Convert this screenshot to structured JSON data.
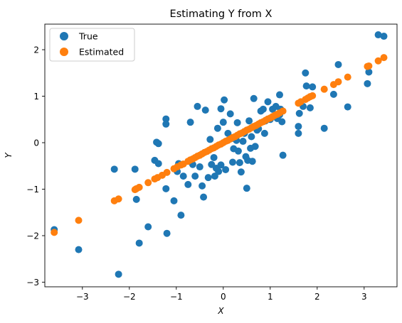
{
  "chart_data": {
    "type": "scatter",
    "title": "Estimating Y from X",
    "xlabel": "X",
    "ylabel": "Y",
    "xlim": [
      -3.8,
      3.7
    ],
    "ylim": [
      -3.1,
      2.55
    ],
    "xticks": [
      -3,
      -2,
      -1,
      0,
      1,
      2,
      3
    ],
    "yticks": [
      -3,
      -2,
      -1,
      0,
      1,
      2
    ],
    "grid": false,
    "legend_position": "top-left",
    "series": [
      {
        "name": "True",
        "color": "#1f77b4",
        "points": [
          [
            -3.6,
            -1.87
          ],
          [
            -3.08,
            -2.3
          ],
          [
            -2.32,
            -0.57
          ],
          [
            -2.23,
            -2.83
          ],
          [
            -1.88,
            -0.57
          ],
          [
            -1.85,
            -1.22
          ],
          [
            -1.79,
            -2.16
          ],
          [
            -1.6,
            -1.81
          ],
          [
            -1.46,
            -0.38
          ],
          [
            -1.42,
            0.01
          ],
          [
            -1.38,
            -0.02
          ],
          [
            -1.38,
            -0.45
          ],
          [
            -1.22,
            0.51
          ],
          [
            -1.22,
            0.4
          ],
          [
            -1.22,
            -0.99
          ],
          [
            -1.2,
            -1.95
          ],
          [
            -1.05,
            -1.25
          ],
          [
            -0.98,
            -0.62
          ],
          [
            -0.95,
            -0.45
          ],
          [
            -0.9,
            -1.56
          ],
          [
            -0.85,
            -0.72
          ],
          [
            -0.75,
            -0.9
          ],
          [
            -0.7,
            0.44
          ],
          [
            -0.65,
            -0.47
          ],
          [
            -0.6,
            -0.72
          ],
          [
            -0.55,
            0.78
          ],
          [
            -0.5,
            -0.52
          ],
          [
            -0.45,
            -0.93
          ],
          [
            -0.42,
            -1.17
          ],
          [
            -0.38,
            0.7
          ],
          [
            -0.32,
            -0.75
          ],
          [
            -0.28,
            0.07
          ],
          [
            -0.25,
            -0.47
          ],
          [
            -0.2,
            -0.32
          ],
          [
            -0.18,
            -0.72
          ],
          [
            -0.15,
            -0.55
          ],
          [
            -0.12,
            0.31
          ],
          [
            -0.1,
            -0.62
          ],
          [
            -0.05,
            0.73
          ],
          [
            -0.05,
            -0.48
          ],
          [
            0.0,
            0.44
          ],
          [
            0.02,
            0.92
          ],
          [
            0.05,
            -0.58
          ],
          [
            0.1,
            0.2
          ],
          [
            0.15,
            0.62
          ],
          [
            0.18,
            0.09
          ],
          [
            0.2,
            -0.42
          ],
          [
            0.22,
            -0.13
          ],
          [
            0.28,
            0.05
          ],
          [
            0.3,
            0.43
          ],
          [
            0.32,
            -0.18
          ],
          [
            0.35,
            -0.43
          ],
          [
            0.38,
            -0.63
          ],
          [
            0.42,
            0.03
          ],
          [
            0.45,
            0.2
          ],
          [
            0.48,
            -0.3
          ],
          [
            0.5,
            -0.98
          ],
          [
            0.52,
            -0.38
          ],
          [
            0.55,
            0.47
          ],
          [
            0.58,
            -0.12
          ],
          [
            0.6,
            0.13
          ],
          [
            0.62,
            -0.4
          ],
          [
            0.65,
            0.95
          ],
          [
            0.68,
            -0.08
          ],
          [
            0.72,
            0.27
          ],
          [
            0.75,
            0.3
          ],
          [
            0.8,
            0.68
          ],
          [
            0.85,
            0.72
          ],
          [
            0.88,
            0.2
          ],
          [
            0.9,
            0.47
          ],
          [
            0.95,
            0.88
          ],
          [
            1.0,
            0.5
          ],
          [
            1.05,
            0.72
          ],
          [
            1.12,
            0.78
          ],
          [
            1.15,
            0.52
          ],
          [
            1.2,
            0.6
          ],
          [
            1.2,
            1.03
          ],
          [
            1.22,
            0.72
          ],
          [
            1.25,
            0.45
          ],
          [
            1.27,
            -0.27
          ],
          [
            1.6,
            0.35
          ],
          [
            1.6,
            0.2
          ],
          [
            1.62,
            0.63
          ],
          [
            1.7,
            0.78
          ],
          [
            1.75,
            1.5
          ],
          [
            1.77,
            1.22
          ],
          [
            1.85,
            0.75
          ],
          [
            1.9,
            1.2
          ],
          [
            2.15,
            0.31
          ],
          [
            2.35,
            1.04
          ],
          [
            2.45,
            1.68
          ],
          [
            2.65,
            0.77
          ],
          [
            3.07,
            1.27
          ],
          [
            3.1,
            1.52
          ],
          [
            3.3,
            2.32
          ],
          [
            3.42,
            2.29
          ]
        ]
      },
      {
        "name": "Estimated",
        "color": "#ff7f0e",
        "points": [
          [
            -3.6,
            -1.93
          ],
          [
            -3.08,
            -1.67
          ],
          [
            -2.32,
            -1.25
          ],
          [
            -2.23,
            -1.21
          ],
          [
            -1.88,
            -1.01
          ],
          [
            -1.85,
            -0.99
          ],
          [
            -1.79,
            -0.96
          ],
          [
            -1.6,
            -0.86
          ],
          [
            -1.46,
            -0.78
          ],
          [
            -1.4,
            -0.75
          ],
          [
            -1.3,
            -0.7
          ],
          [
            -1.2,
            -0.64
          ],
          [
            -1.05,
            -0.56
          ],
          [
            -0.98,
            -0.52
          ],
          [
            -0.9,
            -0.48
          ],
          [
            -0.85,
            -0.46
          ],
          [
            -0.75,
            -0.4
          ],
          [
            -0.7,
            -0.37
          ],
          [
            -0.65,
            -0.35
          ],
          [
            -0.6,
            -0.32
          ],
          [
            -0.55,
            -0.29
          ],
          [
            -0.5,
            -0.27
          ],
          [
            -0.45,
            -0.24
          ],
          [
            -0.4,
            -0.21
          ],
          [
            -0.35,
            -0.19
          ],
          [
            -0.3,
            -0.16
          ],
          [
            -0.25,
            -0.13
          ],
          [
            -0.2,
            -0.11
          ],
          [
            -0.15,
            -0.08
          ],
          [
            -0.1,
            -0.05
          ],
          [
            -0.05,
            -0.03
          ],
          [
            0.0,
            0.0
          ],
          [
            0.05,
            0.03
          ],
          [
            0.1,
            0.05
          ],
          [
            0.15,
            0.08
          ],
          [
            0.2,
            0.11
          ],
          [
            0.25,
            0.13
          ],
          [
            0.3,
            0.16
          ],
          [
            0.35,
            0.19
          ],
          [
            0.4,
            0.21
          ],
          [
            0.45,
            0.24
          ],
          [
            0.5,
            0.27
          ],
          [
            0.55,
            0.29
          ],
          [
            0.6,
            0.32
          ],
          [
            0.65,
            0.35
          ],
          [
            0.7,
            0.37
          ],
          [
            0.75,
            0.4
          ],
          [
            0.8,
            0.43
          ],
          [
            0.85,
            0.45
          ],
          [
            0.9,
            0.48
          ],
          [
            0.95,
            0.51
          ],
          [
            1.0,
            0.53
          ],
          [
            1.05,
            0.56
          ],
          [
            1.1,
            0.59
          ],
          [
            1.15,
            0.61
          ],
          [
            1.2,
            0.64
          ],
          [
            1.27,
            0.68
          ],
          [
            1.6,
            0.85
          ],
          [
            1.65,
            0.88
          ],
          [
            1.75,
            0.93
          ],
          [
            1.8,
            0.96
          ],
          [
            1.85,
            0.99
          ],
          [
            1.9,
            1.01
          ],
          [
            2.15,
            1.15
          ],
          [
            2.35,
            1.25
          ],
          [
            2.45,
            1.31
          ],
          [
            2.65,
            1.41
          ],
          [
            3.07,
            1.64
          ],
          [
            3.1,
            1.65
          ],
          [
            3.3,
            1.76
          ],
          [
            3.42,
            1.83
          ]
        ]
      }
    ]
  }
}
